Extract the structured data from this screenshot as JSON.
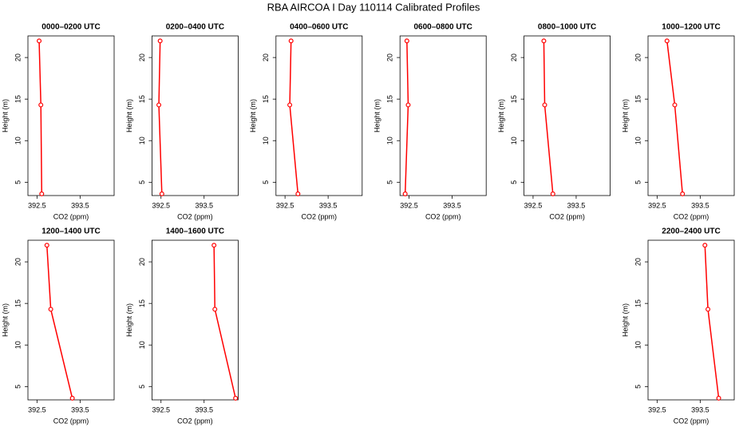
{
  "title": "RBA AIRCOA I  Day 110114  Calibrated Profiles",
  "chart_data": [
    {
      "type": "line",
      "title": "0000–0200 UTC",
      "x_label": "CO2 (ppm)",
      "y_label": "Height (m)",
      "xlim": [
        392.29,
        394.29
      ],
      "ylim": [
        3.4,
        22.6
      ],
      "xticks": [
        392.5,
        393.5
      ],
      "yticks": [
        5,
        10,
        15,
        20
      ],
      "series": [
        {
          "color": "#ff0000",
          "x": [
            392.55,
            392.59,
            392.61
          ],
          "values": [
            22,
            14.3,
            3.6
          ]
        }
      ]
    },
    {
      "type": "line",
      "title": "0200–0400 UTC",
      "x_label": "CO2 (ppm)",
      "y_label": "Height (m)",
      "xlim": [
        392.29,
        394.29
      ],
      "ylim": [
        3.4,
        22.6
      ],
      "xticks": [
        392.5,
        393.5
      ],
      "yticks": [
        5,
        10,
        15,
        20
      ],
      "series": [
        {
          "color": "#ff0000",
          "x": [
            392.48,
            392.45,
            392.52
          ],
          "values": [
            22,
            14.3,
            3.6
          ]
        }
      ]
    },
    {
      "type": "line",
      "title": "0400–0600 UTC",
      "x_label": "CO2 (ppm)",
      "y_label": "Height (m)",
      "xlim": [
        392.29,
        394.29
      ],
      "ylim": [
        3.4,
        22.6
      ],
      "xticks": [
        392.5,
        393.5
      ],
      "yticks": [
        5,
        10,
        15,
        20
      ],
      "series": [
        {
          "color": "#ff0000",
          "x": [
            392.64,
            392.61,
            392.8
          ],
          "values": [
            22,
            14.3,
            3.6
          ]
        }
      ]
    },
    {
      "type": "line",
      "title": "0600–0800 UTC",
      "x_label": "CO2 (ppm)",
      "y_label": "Height (m)",
      "xlim": [
        392.29,
        394.29
      ],
      "ylim": [
        3.4,
        22.6
      ],
      "xticks": [
        392.5,
        393.5
      ],
      "yticks": [
        5,
        10,
        15,
        20
      ],
      "series": [
        {
          "color": "#ff0000",
          "x": [
            392.45,
            392.48,
            392.41
          ],
          "values": [
            22,
            14.3,
            3.6
          ]
        }
      ]
    },
    {
      "type": "line",
      "title": "0800–1000 UTC",
      "x_label": "CO2 (ppm)",
      "y_label": "Height (m)",
      "xlim": [
        392.29,
        394.29
      ],
      "ylim": [
        3.4,
        22.6
      ],
      "xticks": [
        392.5,
        393.5
      ],
      "yticks": [
        5,
        10,
        15,
        20
      ],
      "series": [
        {
          "color": "#ff0000",
          "x": [
            392.75,
            392.77,
            392.96
          ],
          "values": [
            22,
            14.3,
            3.6
          ]
        }
      ]
    },
    {
      "type": "line",
      "title": "1000–1200 UTC",
      "x_label": "CO2 (ppm)",
      "y_label": "Height (m)",
      "xlim": [
        392.29,
        394.29
      ],
      "ylim": [
        3.4,
        22.6
      ],
      "xticks": [
        392.5,
        393.5
      ],
      "yticks": [
        5,
        10,
        15,
        20
      ],
      "series": [
        {
          "color": "#ff0000",
          "x": [
            392.73,
            392.91,
            393.09
          ],
          "values": [
            22,
            14.3,
            3.6
          ]
        }
      ]
    },
    {
      "type": "line",
      "title": "1200–1400 UTC",
      "x_label": "CO2 (ppm)",
      "y_label": "Height (m)",
      "xlim": [
        392.29,
        394.29
      ],
      "ylim": [
        3.4,
        22.6
      ],
      "xticks": [
        392.5,
        393.5
      ],
      "yticks": [
        5,
        10,
        15,
        20
      ],
      "series": [
        {
          "color": "#ff0000",
          "x": [
            392.73,
            392.82,
            393.32
          ],
          "values": [
            22,
            14.3,
            3.6
          ]
        }
      ]
    },
    {
      "type": "line",
      "title": "1400–1600 UTC",
      "x_label": "CO2 (ppm)",
      "y_label": "Height (m)",
      "xlim": [
        392.29,
        394.29
      ],
      "ylim": [
        3.4,
        22.6
      ],
      "xticks": [
        392.5,
        393.5
      ],
      "yticks": [
        5,
        10,
        15,
        20
      ],
      "series": [
        {
          "color": "#ff0000",
          "x": [
            393.73,
            393.75,
            394.23
          ],
          "values": [
            22,
            14.3,
            3.6
          ]
        }
      ]
    },
    {
      "type": "line",
      "title": "2200–2400 UTC",
      "x_label": "CO2 (ppm)",
      "y_label": "Height (m)",
      "xlim": [
        392.29,
        394.29
      ],
      "ylim": [
        3.4,
        22.6
      ],
      "xticks": [
        392.5,
        393.5
      ],
      "yticks": [
        5,
        10,
        15,
        20
      ],
      "series": [
        {
          "color": "#ff0000",
          "x": [
            393.61,
            393.68,
            393.93
          ],
          "values": [
            22,
            14.3,
            3.6
          ]
        }
      ]
    }
  ]
}
